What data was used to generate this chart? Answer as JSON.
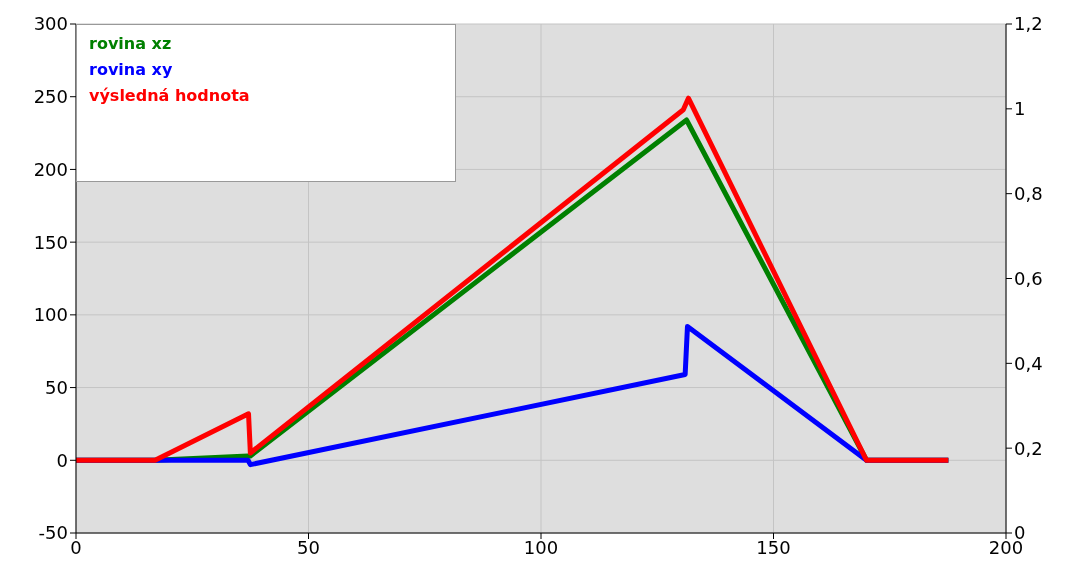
{
  "chart_data": {
    "type": "line",
    "xlim": [
      0,
      200
    ],
    "xticks": [
      0,
      50,
      100,
      150,
      200
    ],
    "ylim": [
      -50,
      300
    ],
    "yticks": [
      -50,
      0,
      50,
      100,
      150,
      200,
      250,
      300
    ],
    "y2lim": [
      0,
      1.2
    ],
    "y2ticks": [
      0,
      {
        "value": 0.2,
        "label": "0,2"
      },
      {
        "value": 0.4,
        "label": "0,4"
      },
      {
        "value": 0.6,
        "label": "0,6"
      },
      {
        "value": 0.8,
        "label": "0,8"
      },
      {
        "value": 1,
        "label": "1"
      },
      {
        "value": 1.2,
        "label": "1,2"
      }
    ],
    "grid": true,
    "legend": "top left",
    "marker": "none",
    "line_style": "solid",
    "series": [
      {
        "name": "rovina xz",
        "color": "#008000",
        "x": [
          0,
          17,
          37,
          37.5,
          131.3,
          170,
          187.6
        ],
        "values": [
          0,
          0,
          3,
          3,
          234,
          0,
          0
        ]
      },
      {
        "name": "rovina xy",
        "color": "#0000ff",
        "x": [
          0,
          37,
          37.5,
          131,
          131.5,
          170,
          187.6
        ],
        "values": [
          0,
          0,
          -3,
          59,
          92,
          0,
          0
        ]
      },
      {
        "name": "výsledná hodnota",
        "color": "#ff0000",
        "x": [
          0,
          17,
          37.1,
          37.5,
          130.6,
          131.7,
          170,
          187.6
        ],
        "values": [
          0,
          0,
          32,
          5,
          241,
          249,
          0,
          0
        ]
      }
    ]
  }
}
